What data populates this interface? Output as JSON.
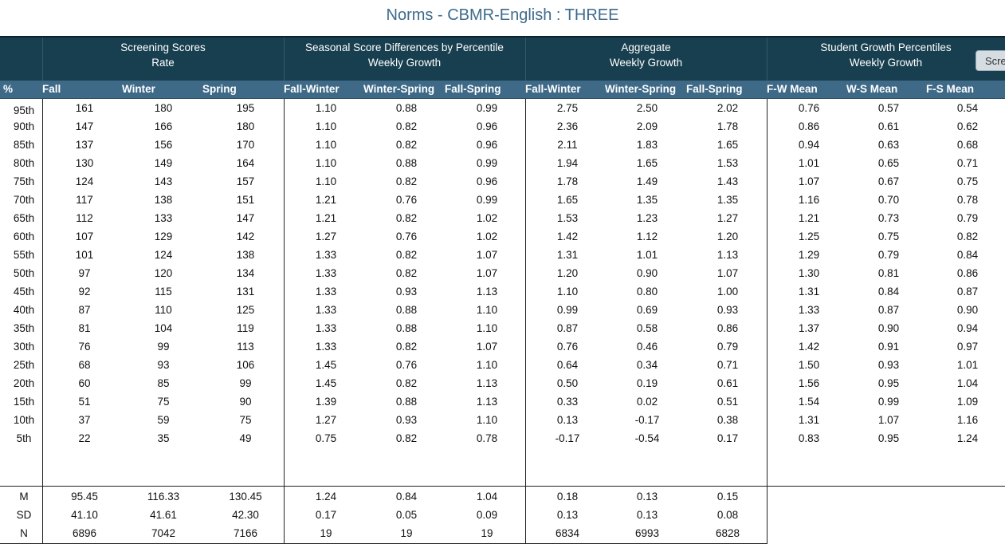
{
  "title": "Norms - CBMR-English : THREE",
  "groups": [
    {
      "line1": "",
      "line2": ""
    },
    {
      "line1": "Screening Scores",
      "line2": "Rate"
    },
    {
      "line1": "Seasonal Score Differences by Percentile",
      "line2": "Weekly Growth"
    },
    {
      "line1": "Aggregate",
      "line2": "Weekly Growth"
    },
    {
      "line1": "Student Growth Percentiles",
      "line2": "Weekly Growth"
    }
  ],
  "screen_button_label": "Scre",
  "columns": [
    "%",
    "Fall",
    "Winter",
    "Spring",
    "Fall-Winter",
    "Winter-Spring",
    "Fall-Spring",
    "Fall-Winter",
    "Winter-Spring",
    "Fall-Spring",
    "F-W Mean",
    "W-S Mean",
    "F-S Mean"
  ],
  "rows": [
    {
      "pct": "95th",
      "vals": [
        "161",
        "180",
        "195",
        "1.10",
        "0.88",
        "0.99",
        "2.75",
        "2.50",
        "2.02",
        "0.76",
        "0.57",
        "0.54"
      ]
    },
    {
      "pct": "90th",
      "vals": [
        "147",
        "166",
        "180",
        "1.10",
        "0.82",
        "0.96",
        "2.36",
        "2.09",
        "1.78",
        "0.86",
        "0.61",
        "0.62"
      ]
    },
    {
      "pct": "85th",
      "vals": [
        "137",
        "156",
        "170",
        "1.10",
        "0.82",
        "0.96",
        "2.11",
        "1.83",
        "1.65",
        "0.94",
        "0.63",
        "0.68"
      ]
    },
    {
      "pct": "80th",
      "vals": [
        "130",
        "149",
        "164",
        "1.10",
        "0.88",
        "0.99",
        "1.94",
        "1.65",
        "1.53",
        "1.01",
        "0.65",
        "0.71"
      ]
    },
    {
      "pct": "75th",
      "vals": [
        "124",
        "143",
        "157",
        "1.10",
        "0.82",
        "0.96",
        "1.78",
        "1.49",
        "1.43",
        "1.07",
        "0.67",
        "0.75"
      ]
    },
    {
      "pct": "70th",
      "vals": [
        "117",
        "138",
        "151",
        "1.21",
        "0.76",
        "0.99",
        "1.65",
        "1.35",
        "1.35",
        "1.16",
        "0.70",
        "0.78"
      ]
    },
    {
      "pct": "65th",
      "vals": [
        "112",
        "133",
        "147",
        "1.21",
        "0.82",
        "1.02",
        "1.53",
        "1.23",
        "1.27",
        "1.21",
        "0.73",
        "0.79"
      ]
    },
    {
      "pct": "60th",
      "vals": [
        "107",
        "129",
        "142",
        "1.27",
        "0.76",
        "1.02",
        "1.42",
        "1.12",
        "1.20",
        "1.25",
        "0.75",
        "0.82"
      ]
    },
    {
      "pct": "55th",
      "vals": [
        "101",
        "124",
        "138",
        "1.33",
        "0.82",
        "1.07",
        "1.31",
        "1.01",
        "1.13",
        "1.29",
        "0.79",
        "0.84"
      ]
    },
    {
      "pct": "50th",
      "vals": [
        "97",
        "120",
        "134",
        "1.33",
        "0.82",
        "1.07",
        "1.20",
        "0.90",
        "1.07",
        "1.30",
        "0.81",
        "0.86"
      ]
    },
    {
      "pct": "45th",
      "vals": [
        "92",
        "115",
        "131",
        "1.33",
        "0.93",
        "1.13",
        "1.10",
        "0.80",
        "1.00",
        "1.31",
        "0.84",
        "0.87"
      ]
    },
    {
      "pct": "40th",
      "vals": [
        "87",
        "110",
        "125",
        "1.33",
        "0.88",
        "1.10",
        "0.99",
        "0.69",
        "0.93",
        "1.33",
        "0.87",
        "0.90"
      ]
    },
    {
      "pct": "35th",
      "vals": [
        "81",
        "104",
        "119",
        "1.33",
        "0.88",
        "1.10",
        "0.87",
        "0.58",
        "0.86",
        "1.37",
        "0.90",
        "0.94"
      ]
    },
    {
      "pct": "30th",
      "vals": [
        "76",
        "99",
        "113",
        "1.33",
        "0.82",
        "1.07",
        "0.76",
        "0.46",
        "0.79",
        "1.42",
        "0.91",
        "0.97"
      ]
    },
    {
      "pct": "25th",
      "vals": [
        "68",
        "93",
        "106",
        "1.45",
        "0.76",
        "1.10",
        "0.64",
        "0.34",
        "0.71",
        "1.50",
        "0.93",
        "1.01"
      ]
    },
    {
      "pct": "20th",
      "vals": [
        "60",
        "85",
        "99",
        "1.45",
        "0.82",
        "1.13",
        "0.50",
        "0.19",
        "0.61",
        "1.56",
        "0.95",
        "1.04"
      ]
    },
    {
      "pct": "15th",
      "vals": [
        "51",
        "75",
        "90",
        "1.39",
        "0.88",
        "1.13",
        "0.33",
        "0.02",
        "0.51",
        "1.54",
        "0.99",
        "1.09"
      ]
    },
    {
      "pct": "10th",
      "vals": [
        "37",
        "59",
        "75",
        "1.27",
        "0.93",
        "1.10",
        "0.13",
        "-0.17",
        "0.38",
        "1.31",
        "1.07",
        "1.16"
      ]
    },
    {
      "pct": "5th",
      "vals": [
        "22",
        "35",
        "49",
        "0.75",
        "0.82",
        "0.78",
        "-0.17",
        "-0.54",
        "0.17",
        "0.83",
        "0.95",
        "1.24"
      ]
    }
  ],
  "summary": [
    {
      "label": "M",
      "vals": [
        "95.45",
        "116.33",
        "130.45",
        "1.24",
        "0.84",
        "1.04",
        "0.18",
        "0.13",
        "0.15",
        "",
        "",
        ""
      ]
    },
    {
      "label": "SD",
      "vals": [
        "41.10",
        "41.61",
        "42.30",
        "0.17",
        "0.05",
        "0.09",
        "0.13",
        "0.13",
        "0.08",
        "",
        "",
        ""
      ]
    },
    {
      "label": "N",
      "vals": [
        "6896",
        "7042",
        "7166",
        "19",
        "19",
        "19",
        "6834",
        "6993",
        "6828",
        "",
        "",
        ""
      ]
    }
  ]
}
